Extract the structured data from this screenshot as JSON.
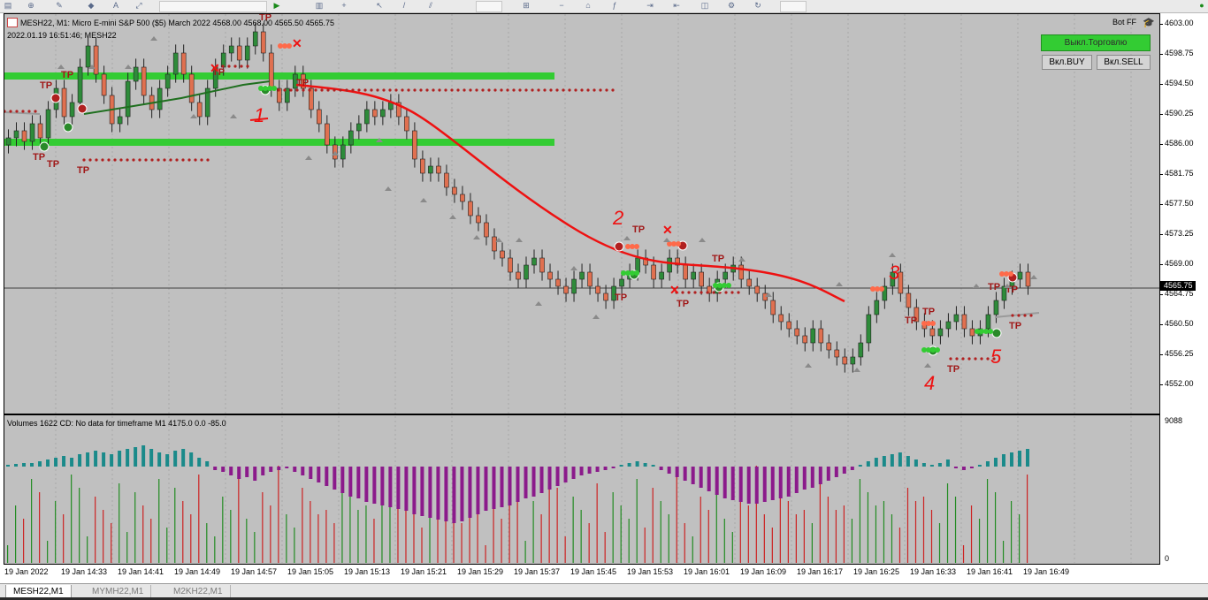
{
  "chart": {
    "title": "MESH22, M1:  Micro E-mini S&P 500 ($5) March 2022  4568.00 4568.00 4565.50 4565.75",
    "timestamp": "2022.01.19 16:51:46; MESH22",
    "bot_label": "Bot FF",
    "current_price_label": "4565.75"
  },
  "buttons": {
    "trading_off": "Выкл.Торговлю",
    "buy_on": "Вкл.BUY",
    "sell_on": "Вкл.SELL"
  },
  "price_axis": [
    "4603.00",
    "4598.75",
    "4594.50",
    "4590.25",
    "4586.00",
    "4581.75",
    "4577.50",
    "4573.25",
    "4569.00",
    "4564.75",
    "4560.50",
    "4556.25",
    "4552.00"
  ],
  "volume_panel": {
    "label": "Volumes 1622 CD: No data for timeframe M1 4175.0 0.0 -85.0",
    "axis_top": "9088",
    "axis_bottom": "0"
  },
  "time_axis": [
    "19 Jan 2022",
    "19 Jan 14:33",
    "19 Jan 14:41",
    "19 Jan 14:49",
    "19 Jan 14:57",
    "19 Jan 15:05",
    "19 Jan 15:13",
    "19 Jan 15:21",
    "19 Jan 15:29",
    "19 Jan 15:37",
    "19 Jan 15:45",
    "19 Jan 15:53",
    "19 Jan 16:01",
    "19 Jan 16:09",
    "19 Jan 16:17",
    "19 Jan 16:25",
    "19 Jan 16:33",
    "19 Jan 16:41",
    "19 Jan 16:49"
  ],
  "annotations": {
    "tp": "TP",
    "numbers": [
      "1",
      "2",
      "3",
      "4",
      "5"
    ]
  },
  "tabs": [
    "MESH22,M1",
    "MYMH22,M1",
    "M2KH22,M1"
  ],
  "colors": {
    "background": "#c0c0c0",
    "bull_candle": "#2e8b3a",
    "bear_candle": "#e07050",
    "zone": "#33cc33",
    "ma_line": "#ee1111",
    "volume_bull": "#1a8a8a",
    "volume_bear": "#8b1a8b",
    "volume_bar_up": "#228b22",
    "volume_bar_down": "#cc2222",
    "button_green": "#33cc33"
  }
}
